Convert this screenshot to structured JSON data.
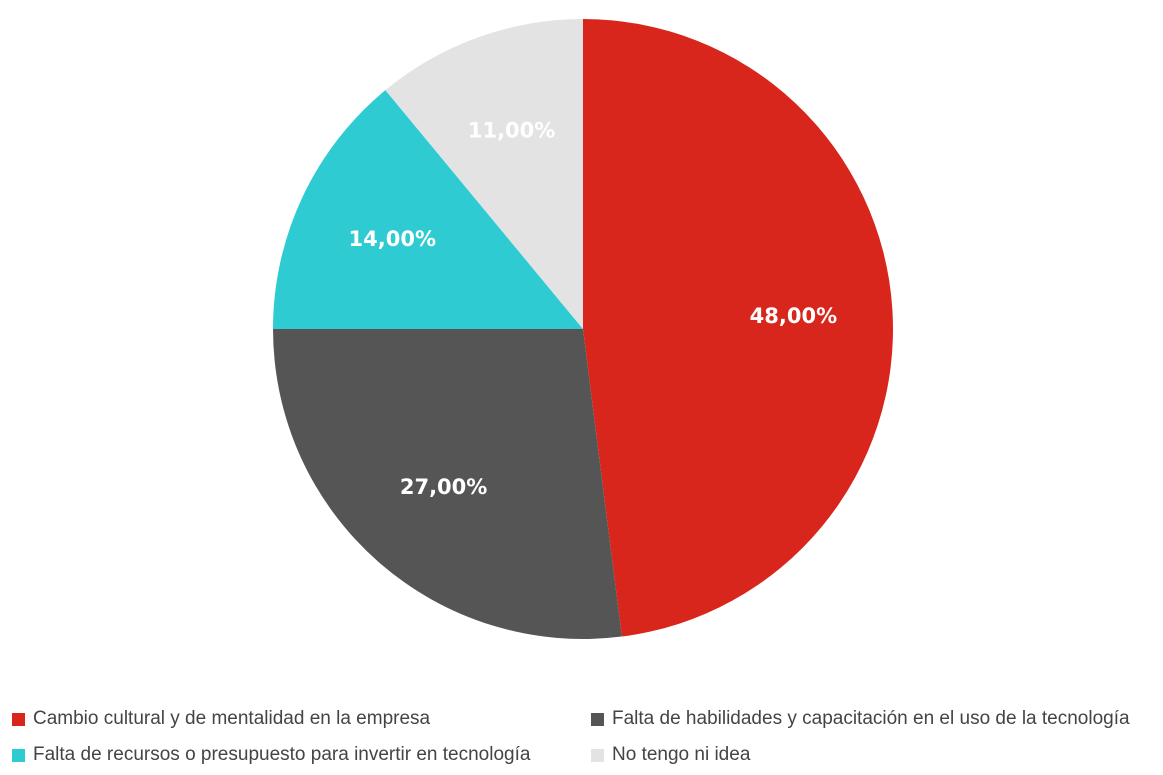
{
  "chart_data": {
    "type": "pie",
    "start_angle_deg": 0,
    "direction": "clockwise",
    "slices": [
      {
        "label": "Cambio cultural y de mentalidad en la empresa",
        "value": 48.0,
        "value_label": "48,00%",
        "color": "#d9261c"
      },
      {
        "label": "Falta de habilidades y capacitación en el uso de la tecnología",
        "value": 27.0,
        "value_label": "27,00%",
        "color": "#555555"
      },
      {
        "label": "Falta de recursos o presupuesto para invertir en tecnología",
        "value": 14.0,
        "value_label": "14,00%",
        "color": "#2ecbd3"
      },
      {
        "label": "No tengo ni idea",
        "value": 11.0,
        "value_label": "11,00%",
        "color": "#e3e3e3"
      }
    ],
    "legend_position": "bottom"
  }
}
